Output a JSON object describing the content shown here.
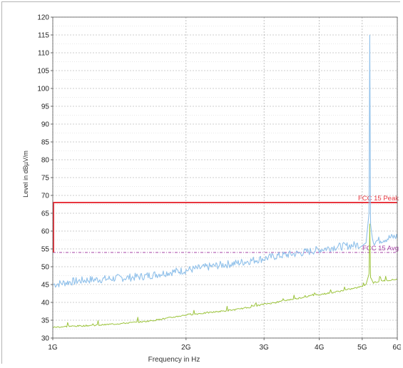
{
  "chart_data": {
    "type": "line",
    "xlabel": "Frequency in Hz",
    "ylabel": "Level in dBµV/m",
    "x_scale": "log",
    "xlim": [
      "1G",
      "6G"
    ],
    "ylim": [
      30,
      120
    ],
    "x_ticks": [
      {
        "label": "1G",
        "value": 1000000000.0
      },
      {
        "label": "2G",
        "value": 2000000000.0
      },
      {
        "label": "3G",
        "value": 3000000000.0
      },
      {
        "label": "4G",
        "value": 4000000000.0
      },
      {
        "label": "5G",
        "value": 5000000000.0
      },
      {
        "label": "6G",
        "value": 6000000000.0
      }
    ],
    "y_ticks": [
      30,
      35,
      40,
      45,
      50,
      55,
      60,
      65,
      70,
      75,
      80,
      85,
      90,
      95,
      100,
      105,
      110,
      115,
      120
    ],
    "grid": true,
    "limits": [
      {
        "name": "FCC 15 Peak",
        "value": 68,
        "color": "#e8363f"
      },
      {
        "name": "FCC 15 Avg",
        "value": 54,
        "color": "#a640a6"
      }
    ],
    "series": [
      {
        "color": "#8fc0ea",
        "x": [
          1000000000.0,
          1100000000.0,
          1200000000.0,
          1300000000.0,
          1400000000.0,
          1500000000.0,
          1600000000.0,
          1700000000.0,
          1800000000.0,
          1900000000.0,
          2000000000.0,
          2200000000.0,
          2400000000.0,
          2600000000.0,
          2800000000.0,
          3000000000.0,
          3200000000.0,
          3400000000.0,
          3600000000.0,
          3800000000.0,
          4000000000.0,
          4300000000.0,
          4600000000.0,
          4900000000.0,
          5100000000.0,
          5180000000.0,
          5200000000.0,
          5220000000.0,
          5300000000.0,
          5500000000.0,
          5800000000.0,
          6000000000.0
        ],
        "y": [
          45,
          45.8,
          46.3,
          46.5,
          46.8,
          47.0,
          47.3,
          47.8,
          48.3,
          48.7,
          49.0,
          49.8,
          50.5,
          51.0,
          51.7,
          52.3,
          53.0,
          53.4,
          53.8,
          54.3,
          54.8,
          55.5,
          55.8,
          56.2,
          56.7,
          65,
          115,
          62,
          57.0,
          57.5,
          58.2,
          58.5
        ]
      },
      {
        "color": "#9cc43c",
        "x": [
          1000000000.0,
          1100000000.0,
          1200000000.0,
          1300000000.0,
          1400000000.0,
          1500000000.0,
          1600000000.0,
          1700000000.0,
          1800000000.0,
          1900000000.0,
          2000000000.0,
          2200000000.0,
          2400000000.0,
          2600000000.0,
          2800000000.0,
          3000000000.0,
          3200000000.0,
          3400000000.0,
          3600000000.0,
          3800000000.0,
          4000000000.0,
          4300000000.0,
          4600000000.0,
          4900000000.0,
          5100000000.0,
          5180000000.0,
          5200000000.0,
          5220000000.0,
          5300000000.0,
          5500000000.0,
          5800000000.0,
          6000000000.0
        ],
        "y": [
          33,
          33.3,
          33.5,
          33.7,
          34.0,
          34.3,
          34.6,
          35.0,
          35.5,
          36.0,
          36.5,
          37.0,
          37.5,
          38.0,
          38.7,
          39.5,
          40.0,
          40.7,
          41.2,
          41.8,
          42.2,
          42.8,
          43.5,
          44.2,
          45.0,
          48,
          62,
          47,
          45.5,
          46.0,
          46.3,
          46.5
        ]
      }
    ]
  }
}
